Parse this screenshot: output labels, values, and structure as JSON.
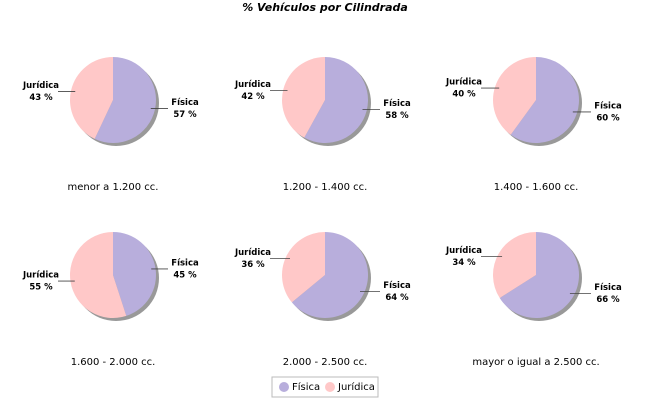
{
  "title": "% Vehículos por Cilindrada",
  "chart_data": [
    {
      "type": "pie",
      "title": "menor a 1.200 cc.",
      "categories": [
        "Física",
        "Jurídica"
      ],
      "values": [
        57,
        43
      ],
      "value_labels": [
        "57 %",
        "43 %"
      ],
      "colors": [
        "#b8aedc",
        "#ffc8c8"
      ]
    },
    {
      "type": "pie",
      "title": "1.200 - 1.400 cc.",
      "categories": [
        "Física",
        "Jurídica"
      ],
      "values": [
        58,
        42
      ],
      "value_labels": [
        "58 %",
        "42 %"
      ],
      "colors": [
        "#b8aedc",
        "#ffc8c8"
      ]
    },
    {
      "type": "pie",
      "title": "1.400 - 1.600 cc.",
      "categories": [
        "Física",
        "Jurídica"
      ],
      "values": [
        60,
        40
      ],
      "value_labels": [
        "60 %",
        "40 %"
      ],
      "colors": [
        "#b8aedc",
        "#ffc8c8"
      ]
    },
    {
      "type": "pie",
      "title": "1.600 - 2.000 cc.",
      "categories": [
        "Física",
        "Jurídica"
      ],
      "values": [
        45,
        55
      ],
      "value_labels": [
        "45 %",
        "55 %"
      ],
      "colors": [
        "#b8aedc",
        "#ffc8c8"
      ]
    },
    {
      "type": "pie",
      "title": "2.000 - 2.500 cc.",
      "categories": [
        "Física",
        "Jurídica"
      ],
      "values": [
        64,
        36
      ],
      "value_labels": [
        "64 %",
        "36 %"
      ],
      "colors": [
        "#b8aedc",
        "#ffc8c8"
      ]
    },
    {
      "type": "pie",
      "title": "mayor o igual a 2.500 cc.",
      "categories": [
        "Física",
        "Jurídica"
      ],
      "values": [
        66,
        34
      ],
      "value_labels": [
        "66 %",
        "34 %"
      ],
      "colors": [
        "#b8aedc",
        "#ffc8c8"
      ]
    }
  ]
}
